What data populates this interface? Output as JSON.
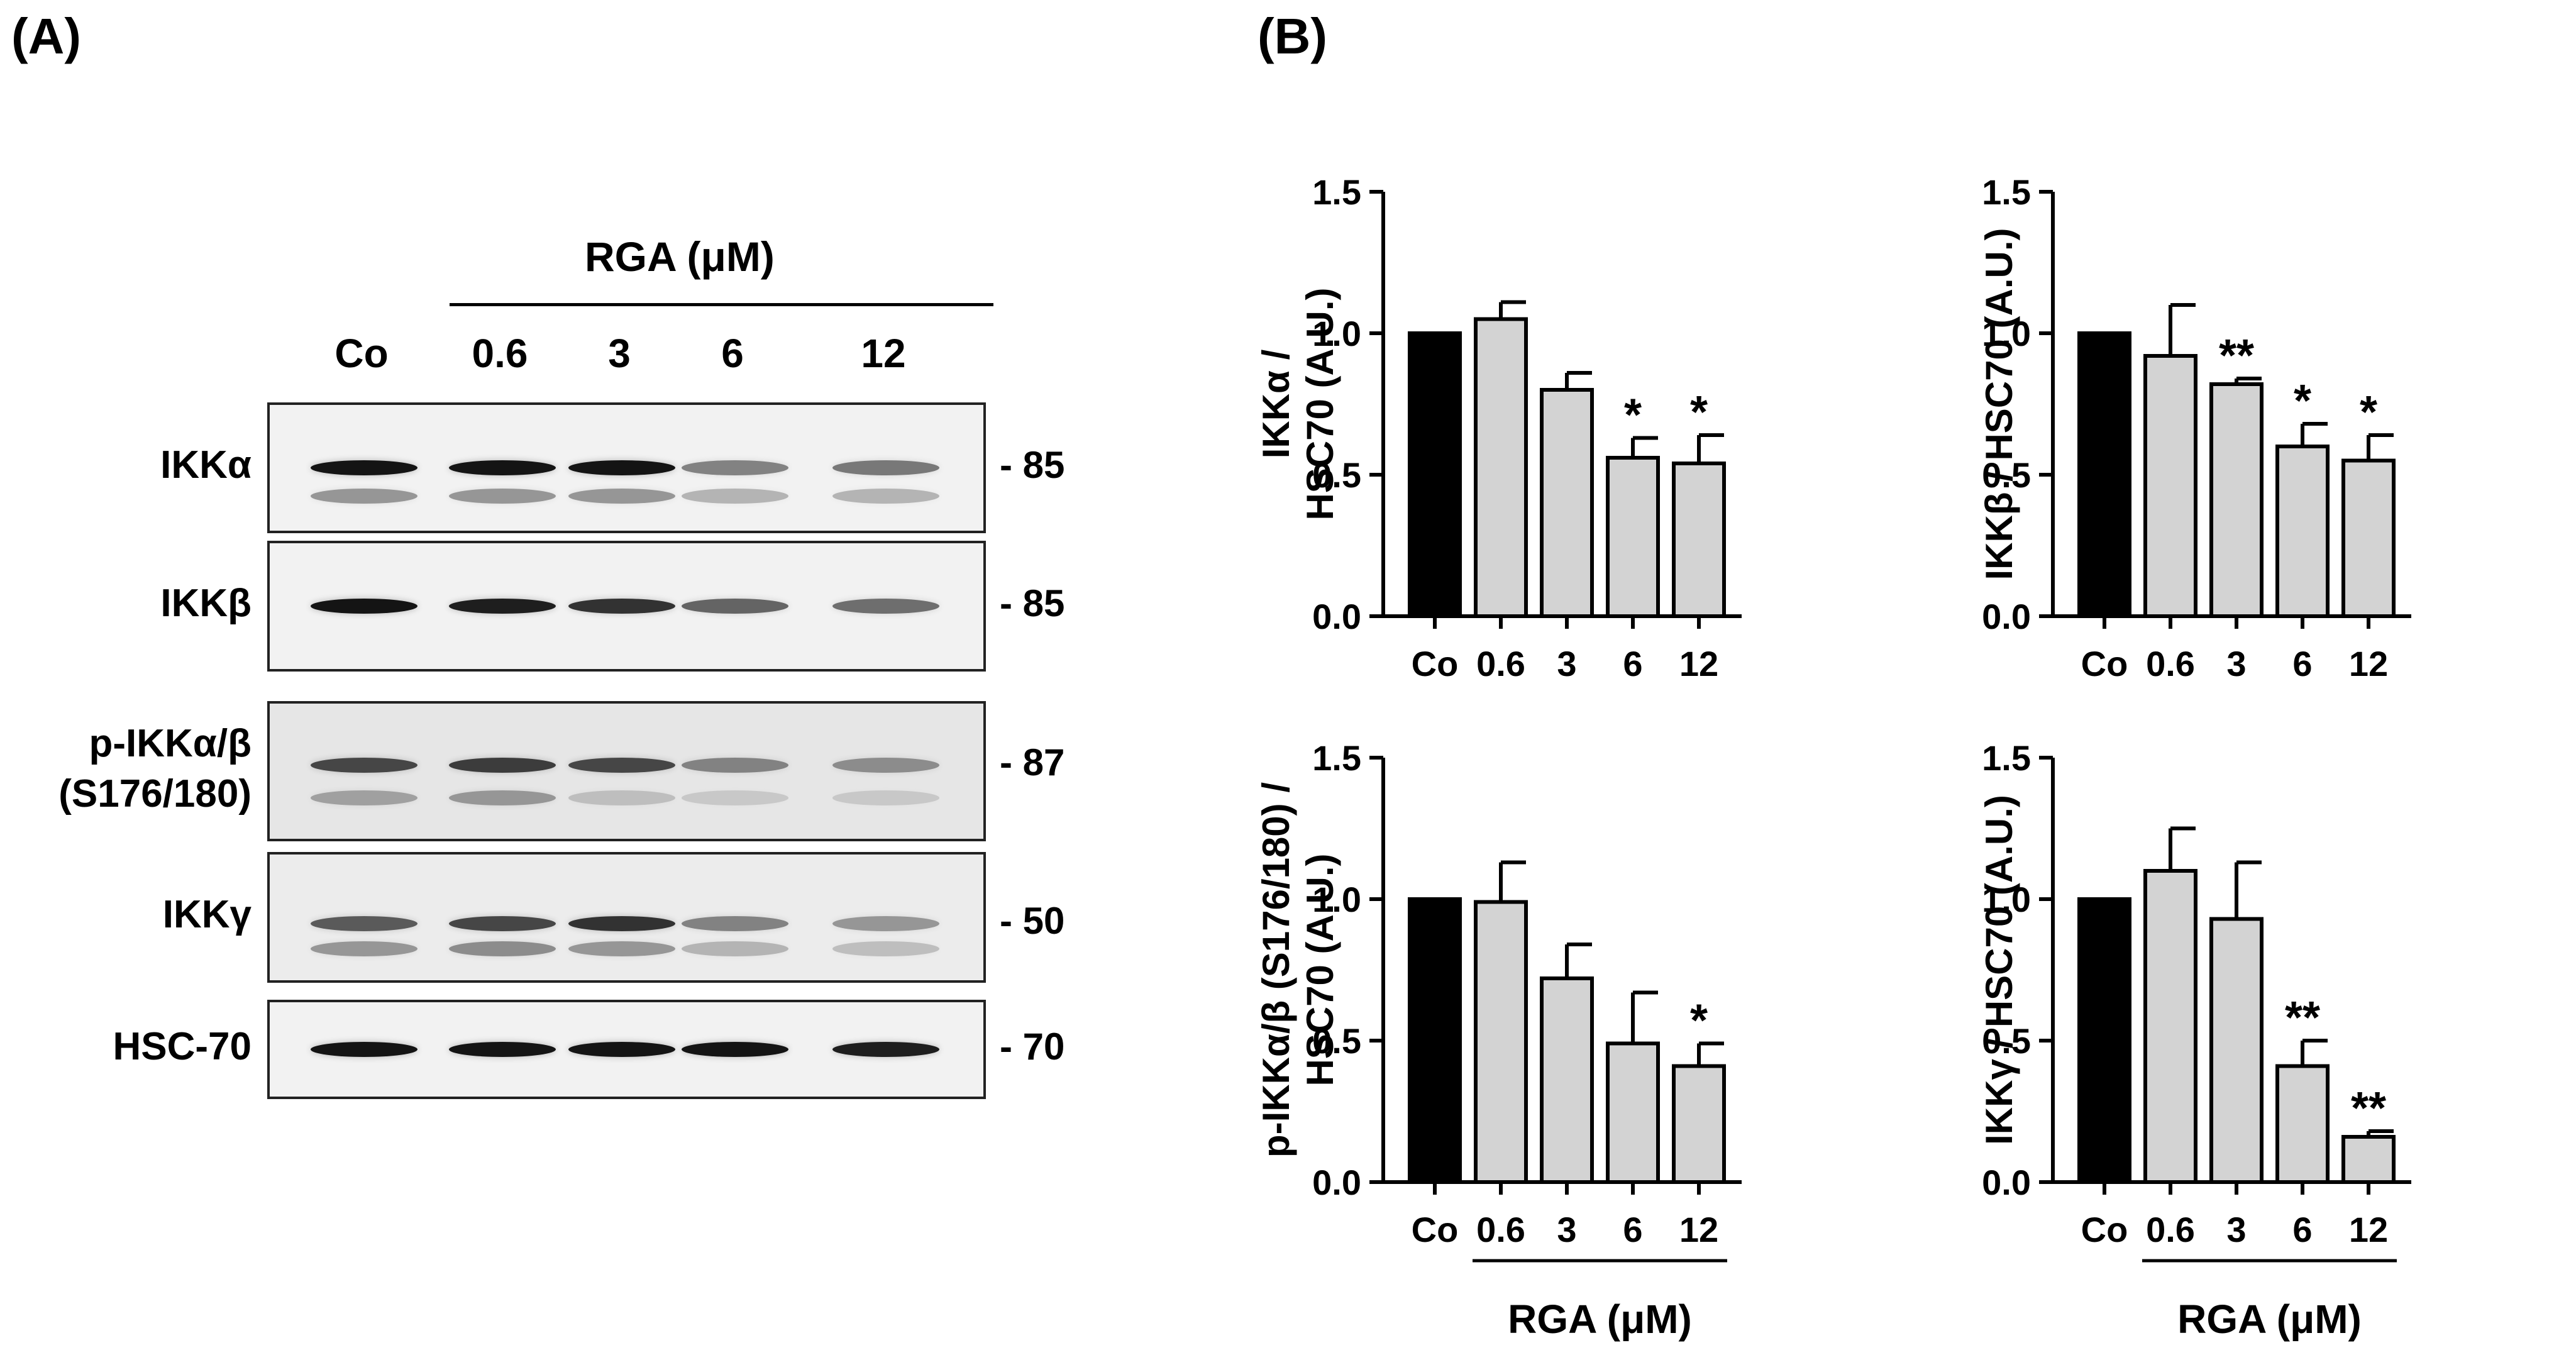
{
  "panel_a": {
    "label": "(A)",
    "treatment_label": "RGA  (μM)",
    "lanes": [
      "Co",
      "0.6",
      "3",
      "6",
      "12"
    ],
    "blots": [
      {
        "protein": "IKKα",
        "mw": "- 85"
      },
      {
        "protein": "IKKβ",
        "mw": "- 85"
      },
      {
        "protein": "p-IKKα/β\n(S176/180)",
        "mw": "- 87"
      },
      {
        "protein": "IKKγ",
        "mw": "- 50"
      },
      {
        "protein": "HSC-70",
        "mw": "- 70"
      }
    ]
  },
  "panel_b": {
    "label": "(B)"
  },
  "colors": {
    "control_bar": "#000000",
    "treated_bar": "#d3d3d3",
    "edge": "#000000"
  },
  "chart_data": [
    {
      "type": "bar",
      "ylabel_line1": "IKKα /",
      "ylabel_line2": "HSC70 (A.U.)",
      "categories": [
        "Co",
        "0.6",
        "3",
        "6",
        "12"
      ],
      "values": [
        1.0,
        1.05,
        0.8,
        0.56,
        0.54
      ],
      "errors": [
        0,
        0.06,
        0.06,
        0.07,
        0.1
      ],
      "significance": [
        "",
        "",
        "",
        "*",
        "*"
      ],
      "ylim": [
        0,
        1.5
      ],
      "yticks": [
        "0.0",
        "0.5",
        "1.0",
        "1.5"
      ],
      "treatment_label": ""
    },
    {
      "type": "bar",
      "ylabel_line1": "IKKβ / HSC70 (A.U.)",
      "ylabel_line2": "",
      "categories": [
        "Co",
        "0.6",
        "3",
        "6",
        "12"
      ],
      "values": [
        1.0,
        0.92,
        0.82,
        0.6,
        0.55
      ],
      "errors": [
        0,
        0.18,
        0.02,
        0.08,
        0.09
      ],
      "significance": [
        "",
        "",
        "**",
        "*",
        "*"
      ],
      "ylim": [
        0,
        1.5
      ],
      "yticks": [
        "0.0",
        "0.5",
        "1.0",
        "1.5"
      ],
      "treatment_label": ""
    },
    {
      "type": "bar",
      "ylabel_line1": "p-IKKα/β (S176/180) /",
      "ylabel_line2": "HSC70 (A.U.)",
      "categories": [
        "Co",
        "0.6",
        "3",
        "6",
        "12"
      ],
      "values": [
        1.0,
        0.99,
        0.72,
        0.49,
        0.41
      ],
      "errors": [
        0,
        0.14,
        0.12,
        0.18,
        0.08
      ],
      "significance": [
        "",
        "",
        "",
        "",
        "*"
      ],
      "ylim": [
        0,
        1.5
      ],
      "yticks": [
        "0.0",
        "0.5",
        "1.0",
        "1.5"
      ],
      "treatment_label": "RGA  (μM)"
    },
    {
      "type": "bar",
      "ylabel_line1": "IKKγ / HSC70 (A.U.)",
      "ylabel_line2": "",
      "categories": [
        "Co",
        "0.6",
        "3",
        "6",
        "12"
      ],
      "values": [
        1.0,
        1.1,
        0.93,
        0.41,
        0.16
      ],
      "errors": [
        0,
        0.15,
        0.2,
        0.09,
        0.02
      ],
      "significance": [
        "",
        "",
        "",
        "**",
        "**"
      ],
      "ylim": [
        0,
        1.5
      ],
      "yticks": [
        "0.0",
        "0.5",
        "1.0",
        "1.5"
      ],
      "treatment_label": "RGA  (μM)"
    }
  ]
}
